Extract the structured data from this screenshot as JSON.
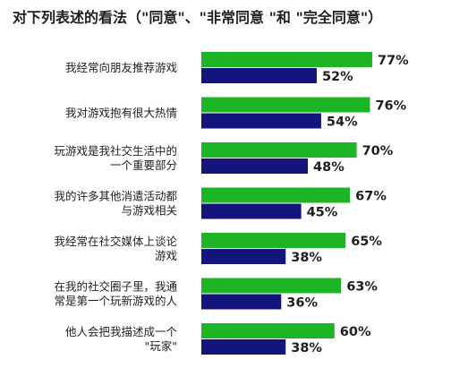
{
  "chart_data": {
    "type": "bar",
    "orientation": "horizontal",
    "title": "对下列表述的看法（\"同意\"、\"非常同意 \"和 \"完全同意\"）",
    "categories": [
      [
        "我经常向朋友推荐游戏"
      ],
      [
        "我对游戏抱有很大热情"
      ],
      [
        "玩游戏是我社交生活中的",
        "一个重要部分"
      ],
      [
        "我的许多其他消遣活动都",
        "与游戏相关"
      ],
      [
        "我经常在社交媒体上谈论",
        "游戏"
      ],
      [
        "在我的社交圈子里，我通",
        "常是第一个玩新游戏的人"
      ],
      [
        "他人会把我描述成一个",
        "\"玩家\""
      ]
    ],
    "series": [
      {
        "color": "#1db526",
        "values": [
          77,
          76,
          70,
          67,
          65,
          63,
          60
        ]
      },
      {
        "color": "#14147d",
        "values": [
          52,
          54,
          48,
          45,
          38,
          36,
          38
        ]
      }
    ],
    "value_suffix": "%",
    "xlim": [
      0,
      100
    ],
    "grid": false,
    "legend": "none"
  }
}
